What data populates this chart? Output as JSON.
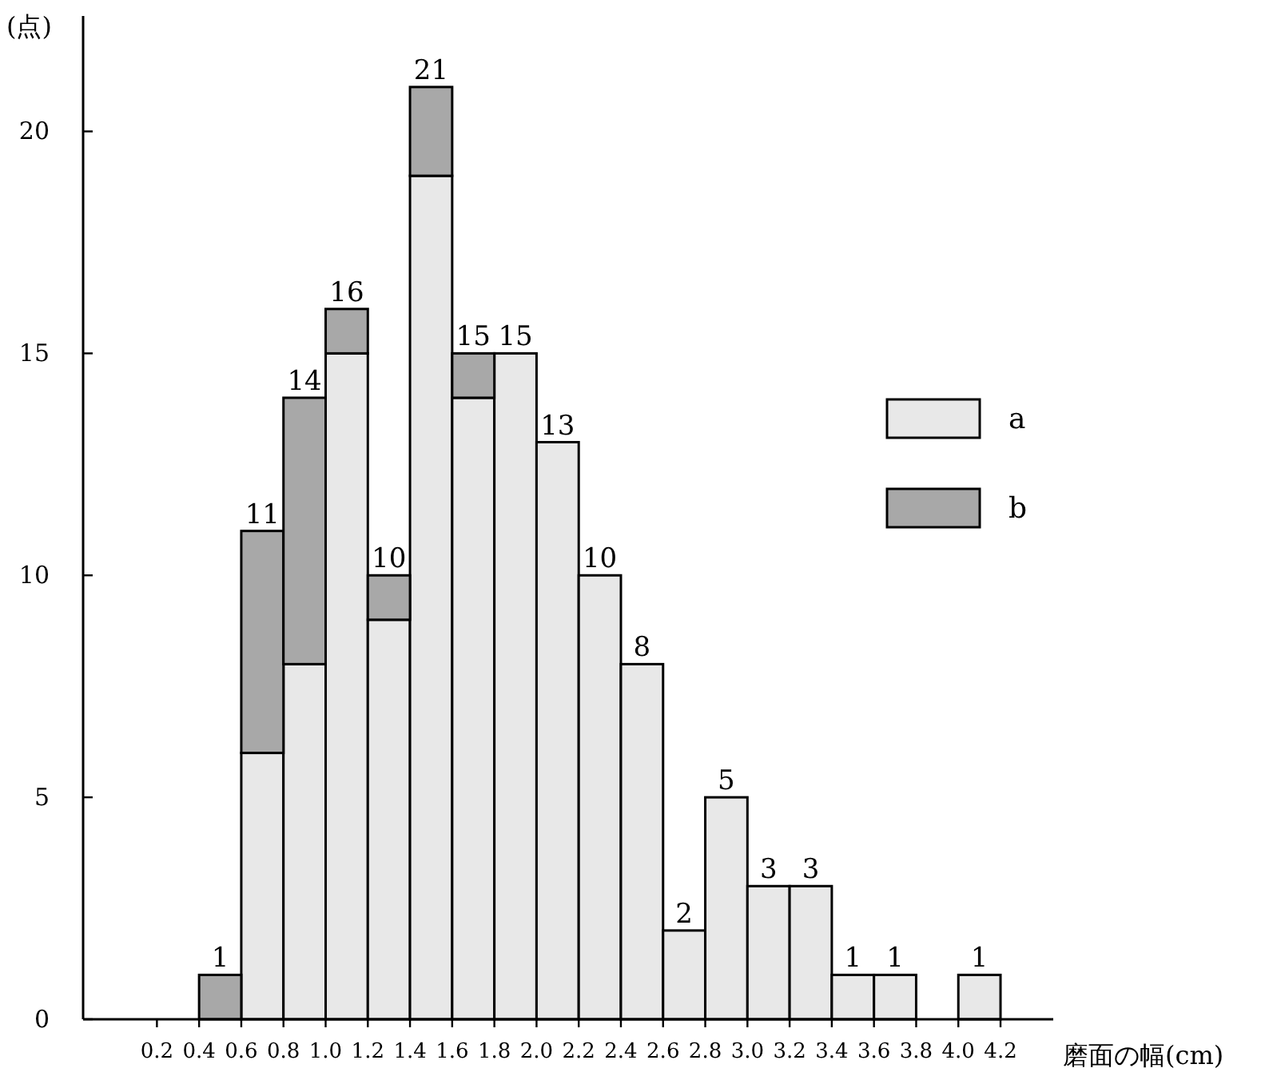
{
  "chart_data": {
    "type": "bar",
    "stacked": true,
    "x": [
      0.5,
      0.7,
      0.9,
      1.1,
      1.3,
      1.5,
      1.7,
      1.9,
      2.1,
      2.3,
      2.5,
      2.7,
      2.9,
      3.1,
      3.3,
      3.5,
      3.7,
      3.9,
      4.1
    ],
    "series": [
      {
        "name": "a",
        "color": "#e8e8e8",
        "values": [
          0,
          6,
          8,
          15,
          9,
          19,
          14,
          15,
          13,
          10,
          8,
          2,
          5,
          3,
          3,
          1,
          1,
          0,
          1
        ]
      },
      {
        "name": "b",
        "color": "#a8a8a8",
        "values": [
          1,
          5,
          6,
          1,
          1,
          2,
          1,
          0,
          0,
          0,
          0,
          0,
          0,
          0,
          0,
          0,
          0,
          0,
          0
        ]
      }
    ],
    "totals": [
      "1",
      "11",
      "14",
      "16",
      "10",
      "21",
      "15",
      "15",
      "13",
      "10",
      "8",
      "2",
      "5",
      "3",
      "3",
      "1",
      "1",
      null,
      "1"
    ],
    "xlim": [
      -0.15,
      4.45
    ],
    "xticks": [
      0.2,
      0.4,
      0.6,
      0.8,
      {
        "value": 1.0,
        "label": "1.0"
      },
      1.2,
      1.4,
      1.6,
      1.8,
      {
        "value": 2.0,
        "label": "2.0"
      },
      2.2,
      2.4,
      2.6,
      2.8,
      {
        "value": 3.0,
        "label": "3.0"
      },
      3.2,
      3.4,
      3.6,
      3.8,
      {
        "value": 4.0,
        "label": "4.0"
      },
      4.2
    ],
    "ylim": [
      0,
      22.6
    ],
    "yticks": [
      0,
      5,
      10,
      15,
      20
    ],
    "xlabel": "磨面の幅(cm)",
    "ylabel": "(点)",
    "legend": "right",
    "grid": false
  }
}
